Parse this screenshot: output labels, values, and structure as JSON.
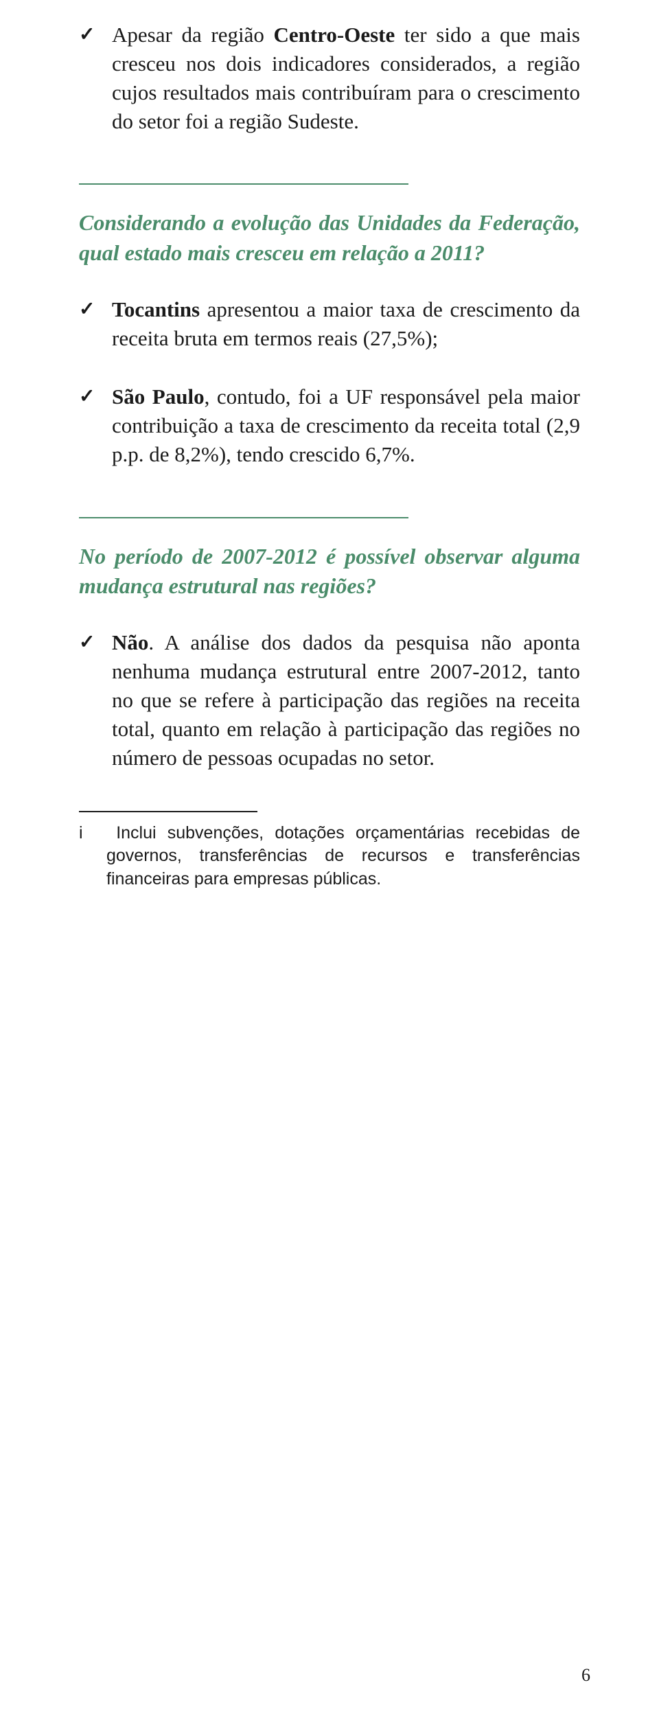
{
  "colors": {
    "accent": "#4a8c6a",
    "text": "#1a1a1a",
    "background": "#ffffff"
  },
  "p1": {
    "pre": "Apesar da região ",
    "b1": "Centro-Oeste",
    "mid": " ter sido a que mais cresceu nos dois indicadores considerados, a região cujos resultados mais contribuíram para o crescimento do setor foi a região Sudeste."
  },
  "q1": "Considerando a evolução das Unidades da Federação, qual estado mais cresceu em relação a 2011?",
  "p2": {
    "b1": "Tocantins",
    "rest": " apresentou a maior taxa de crescimento da receita bruta em termos reais (27,5%);"
  },
  "p3": {
    "b1": "São Paulo",
    "rest": ", contudo, foi a UF responsável pela maior contribuição a taxa de crescimento da receita total (2,9 p.p. de 8,2%), tendo crescido 6,7%."
  },
  "q2": "No período de 2007-2012 é possível ob­servar alguma mudança estrutural nas regiões?",
  "p4": {
    "b1": "Não",
    "rest": ". A análise dos dados da pesquisa não aponta nenhuma mudança estrutural entre 2007-2012, tanto no que se refere à participação das regiões na receita total, quanto em relação à participação das regiões no número de pessoas ocupadas no setor."
  },
  "footnote": {
    "marker": "i",
    "text": "Inclui subvenções, dotações orçamentárias recebidas de governos, transferências de recursos e transferências financeiras para empresas públicas."
  },
  "page_number": "6"
}
